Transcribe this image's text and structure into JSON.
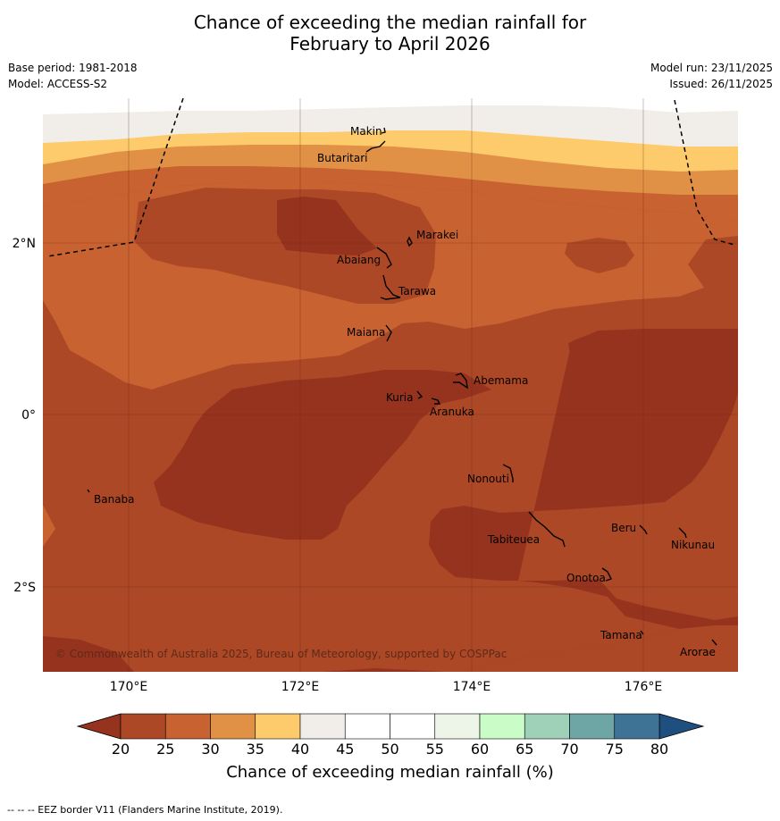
{
  "title": {
    "line1": "Chance of exceeding the median rainfall for",
    "line2": "February to April 2026"
  },
  "meta": {
    "base_period": "Base period: 1981-2018",
    "model": "Model: ACCESS-S2",
    "model_run": "Model run: 23/11/2025",
    "issued": "Issued: 26/11/2025"
  },
  "map": {
    "lon_labels": [
      "170°E",
      "172°E",
      "174°E",
      "176°E"
    ],
    "lat_labels": [
      "2°N",
      "0°",
      "2°S"
    ],
    "places": [
      {
        "name": "Makin"
      },
      {
        "name": "Butaritari"
      },
      {
        "name": "Marakei"
      },
      {
        "name": "Abaiang"
      },
      {
        "name": "Tarawa"
      },
      {
        "name": "Maiana"
      },
      {
        "name": "Abemama"
      },
      {
        "name": "Kuria"
      },
      {
        "name": "Aranuka"
      },
      {
        "name": "Nonouti"
      },
      {
        "name": "Banaba"
      },
      {
        "name": "Beru"
      },
      {
        "name": "Nikunau"
      },
      {
        "name": "Tabiteuea"
      },
      {
        "name": "Onotoa"
      },
      {
        "name": "Tamana"
      },
      {
        "name": "Arorae"
      }
    ],
    "copyright": "© Commonwealth of Australia 2025, Bureau of Meteorology, supported by COSPPac"
  },
  "colorbar": {
    "ticks": [
      "20",
      "25",
      "30",
      "35",
      "40",
      "45",
      "50",
      "55",
      "60",
      "65",
      "70",
      "75",
      "80"
    ],
    "colors": [
      "#ad4826",
      "#c96231",
      "#e09146",
      "#fdcb6c",
      "#f1ede8",
      "#ffffff",
      "#ffffff",
      "#edf5e9",
      "#c9fcc7",
      "#9fd1b9",
      "#6da6a5",
      "#3e7396"
    ],
    "under_color": "#96331f",
    "over_color": "#1f4f7f",
    "label": "Chance of exceeding median rainfall (%)"
  },
  "footer": "--  --  -- EEZ border V11 (Flanders Marine Institute, 2019)."
}
